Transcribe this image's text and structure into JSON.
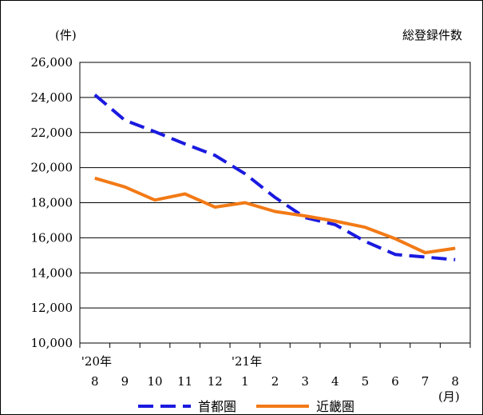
{
  "chart_data": {
    "type": "line",
    "title": "総登録件数",
    "ylabel": "(件)",
    "xlabel": "(月)",
    "ylim": [
      10000,
      26000
    ],
    "yticks": [
      10000,
      12000,
      14000,
      16000,
      18000,
      20000,
      22000,
      24000,
      26000
    ],
    "ytick_labels": [
      "10,000",
      "12,000",
      "14,000",
      "16,000",
      "18,000",
      "20,000",
      "22,000",
      "24,000",
      "26,000"
    ],
    "grid": true,
    "legend_position": "bottom",
    "categories": [
      "8",
      "9",
      "10",
      "11",
      "12",
      "1",
      "2",
      "3",
      "4",
      "5",
      "6",
      "7",
      "8"
    ],
    "year_labels": [
      {
        "index": 0,
        "text": "'20年"
      },
      {
        "index": 5,
        "text": "'21年"
      }
    ],
    "series": [
      {
        "name": "首都圏",
        "color": "#1a1adf",
        "style": "dashed",
        "values": [
          24150,
          22700,
          22050,
          21350,
          20700,
          19650,
          18300,
          17150,
          16750,
          15800,
          15050,
          14900,
          14750
        ]
      },
      {
        "name": "近畿圏",
        "color": "#f27a16",
        "style": "solid",
        "values": [
          19400,
          18900,
          18150,
          18500,
          17750,
          18000,
          17500,
          17250,
          16950,
          16600,
          15950,
          15150,
          15400
        ]
      }
    ]
  }
}
